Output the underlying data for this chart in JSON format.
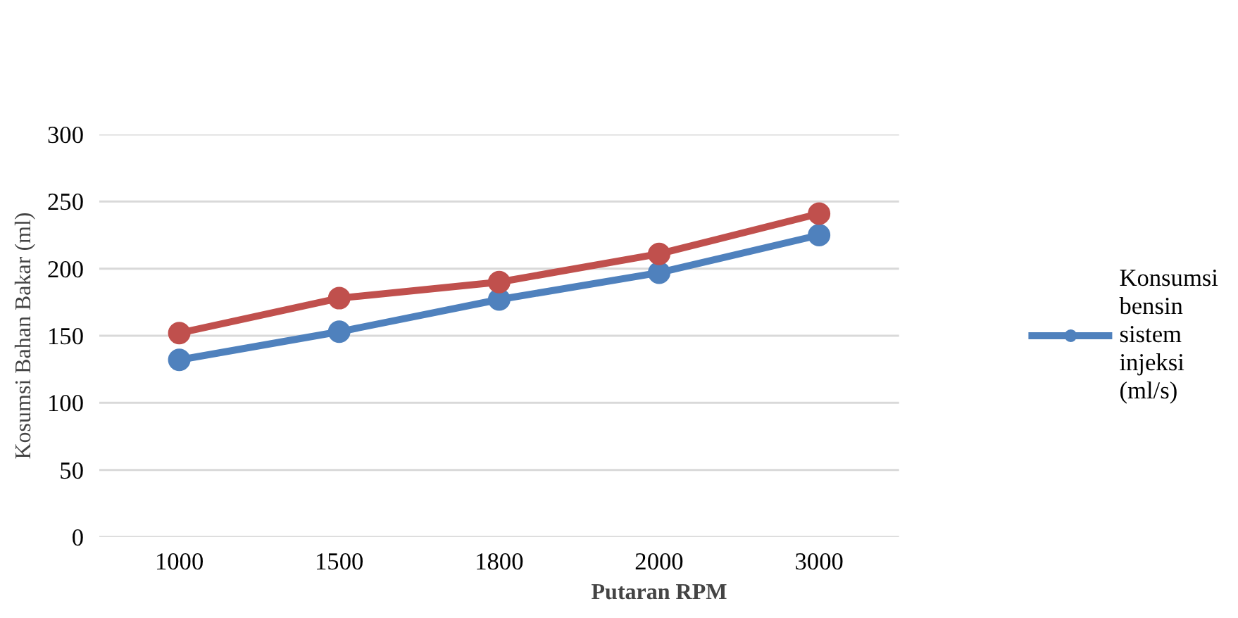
{
  "chart_data": {
    "type": "line",
    "xlabel": "Putaran RPM",
    "ylabel": "Kosumsi Bahan Bakar (ml)",
    "categories": [
      "1000",
      "1500",
      "1800",
      "2000",
      "3000"
    ],
    "series": [
      {
        "name": "Konsumsi bensin sistem injeksi (ml/s)",
        "color": "#4f81bd",
        "values": [
          132,
          153,
          177,
          197,
          225
        ]
      },
      {
        "color": "#c0504d",
        "values": [
          152,
          178,
          190,
          211,
          241
        ]
      }
    ],
    "ylim": [
      0,
      300
    ],
    "yticks": [
      0,
      50,
      100,
      150,
      200,
      250,
      300
    ],
    "grid": "y",
    "legend": "right",
    "marker": "circle"
  }
}
